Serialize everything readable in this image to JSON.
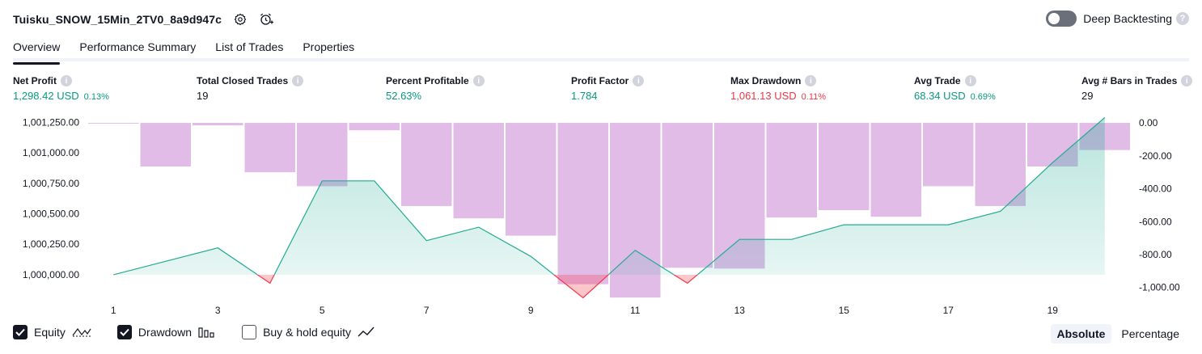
{
  "header": {
    "strategy_name": "Tuisku_SNOW_15Min_2TV0_8a9d947c",
    "settings_icon": "gear-icon",
    "alert_icon": "alarm-clock-plus-icon"
  },
  "deep_backtesting": {
    "label": "Deep Backtesting",
    "enabled": false,
    "help": "?"
  },
  "tabs": [
    {
      "label": "Overview",
      "active": true
    },
    {
      "label": "Performance Summary",
      "active": false
    },
    {
      "label": "List of Trades",
      "active": false
    },
    {
      "label": "Properties",
      "active": false
    }
  ],
  "stats": [
    {
      "label": "Net Profit",
      "value": "1,298.42 USD",
      "sub": "0.13%",
      "tone": "pos"
    },
    {
      "label": "Total Closed Trades",
      "value": "19",
      "sub": "",
      "tone": ""
    },
    {
      "label": "Percent Profitable",
      "value": "52.63%",
      "sub": "",
      "tone": "pos"
    },
    {
      "label": "Profit Factor",
      "value": "1.784",
      "sub": "",
      "tone": "pos"
    },
    {
      "label": "Max Drawdown",
      "value": "1,061.13 USD",
      "sub": "0.11%",
      "tone": "neg"
    },
    {
      "label": "Avg Trade",
      "value": "68.34 USD",
      "sub": "0.69%",
      "tone": "pos"
    },
    {
      "label": "Avg # Bars in Trades",
      "value": "29",
      "sub": "",
      "tone": ""
    }
  ],
  "chart_data": {
    "type": "line",
    "x": [
      1,
      2,
      3,
      4,
      5,
      6,
      7,
      8,
      9,
      10,
      11,
      12,
      13,
      14,
      15,
      16,
      17,
      18,
      19,
      20
    ],
    "x_tick_labels": [
      "1",
      "3",
      "5",
      "7",
      "9",
      "11",
      "13",
      "15",
      "17",
      "19"
    ],
    "y_left_ticks": [
      "1,001,250.00",
      "1,001,000.00",
      "1,000,750.00",
      "1,000,500.00",
      "1,000,250.00",
      "1,000,000.00"
    ],
    "y_right_ticks": [
      "0.00",
      "-200.00",
      "-400.00",
      "-600.00",
      "-800.00",
      "-1,000.00"
    ],
    "ylim_left": [
      999800,
      1001260
    ],
    "ylim_right": [
      -1070,
      10
    ],
    "series": [
      {
        "name": "Equity",
        "axis": "left",
        "color": "#22ab94",
        "loss_color": "#f23645",
        "values": [
          1000000,
          1000110,
          1000220,
          999930,
          1000770,
          1000770,
          1000280,
          1000390,
          1000150,
          999810,
          1000200,
          999930,
          1000290,
          1000290,
          1000410,
          1000410,
          1000410,
          1000520,
          1000920,
          1001290
        ]
      },
      {
        "name": "Drawdown",
        "axis": "right",
        "color": "#ce93d8",
        "values": [
          -5,
          -265,
          -15,
          -300,
          -385,
          -45,
          -505,
          -580,
          -685,
          -980,
          -1061,
          -880,
          -885,
          -575,
          -530,
          -570,
          -385,
          -505,
          -265,
          -165
        ]
      }
    ],
    "legend_placement": "bottom-left",
    "grid": false
  },
  "legend": [
    {
      "label": "Equity",
      "checked": true,
      "icon": "equity-line-icon"
    },
    {
      "label": "Drawdown",
      "checked": true,
      "icon": "drawdown-bars-icon"
    },
    {
      "label": "Buy & hold equity",
      "checked": false,
      "icon": "buy-hold-line-icon"
    }
  ],
  "modes": [
    {
      "label": "Absolute",
      "active": true
    },
    {
      "label": "Percentage",
      "active": false
    }
  ]
}
